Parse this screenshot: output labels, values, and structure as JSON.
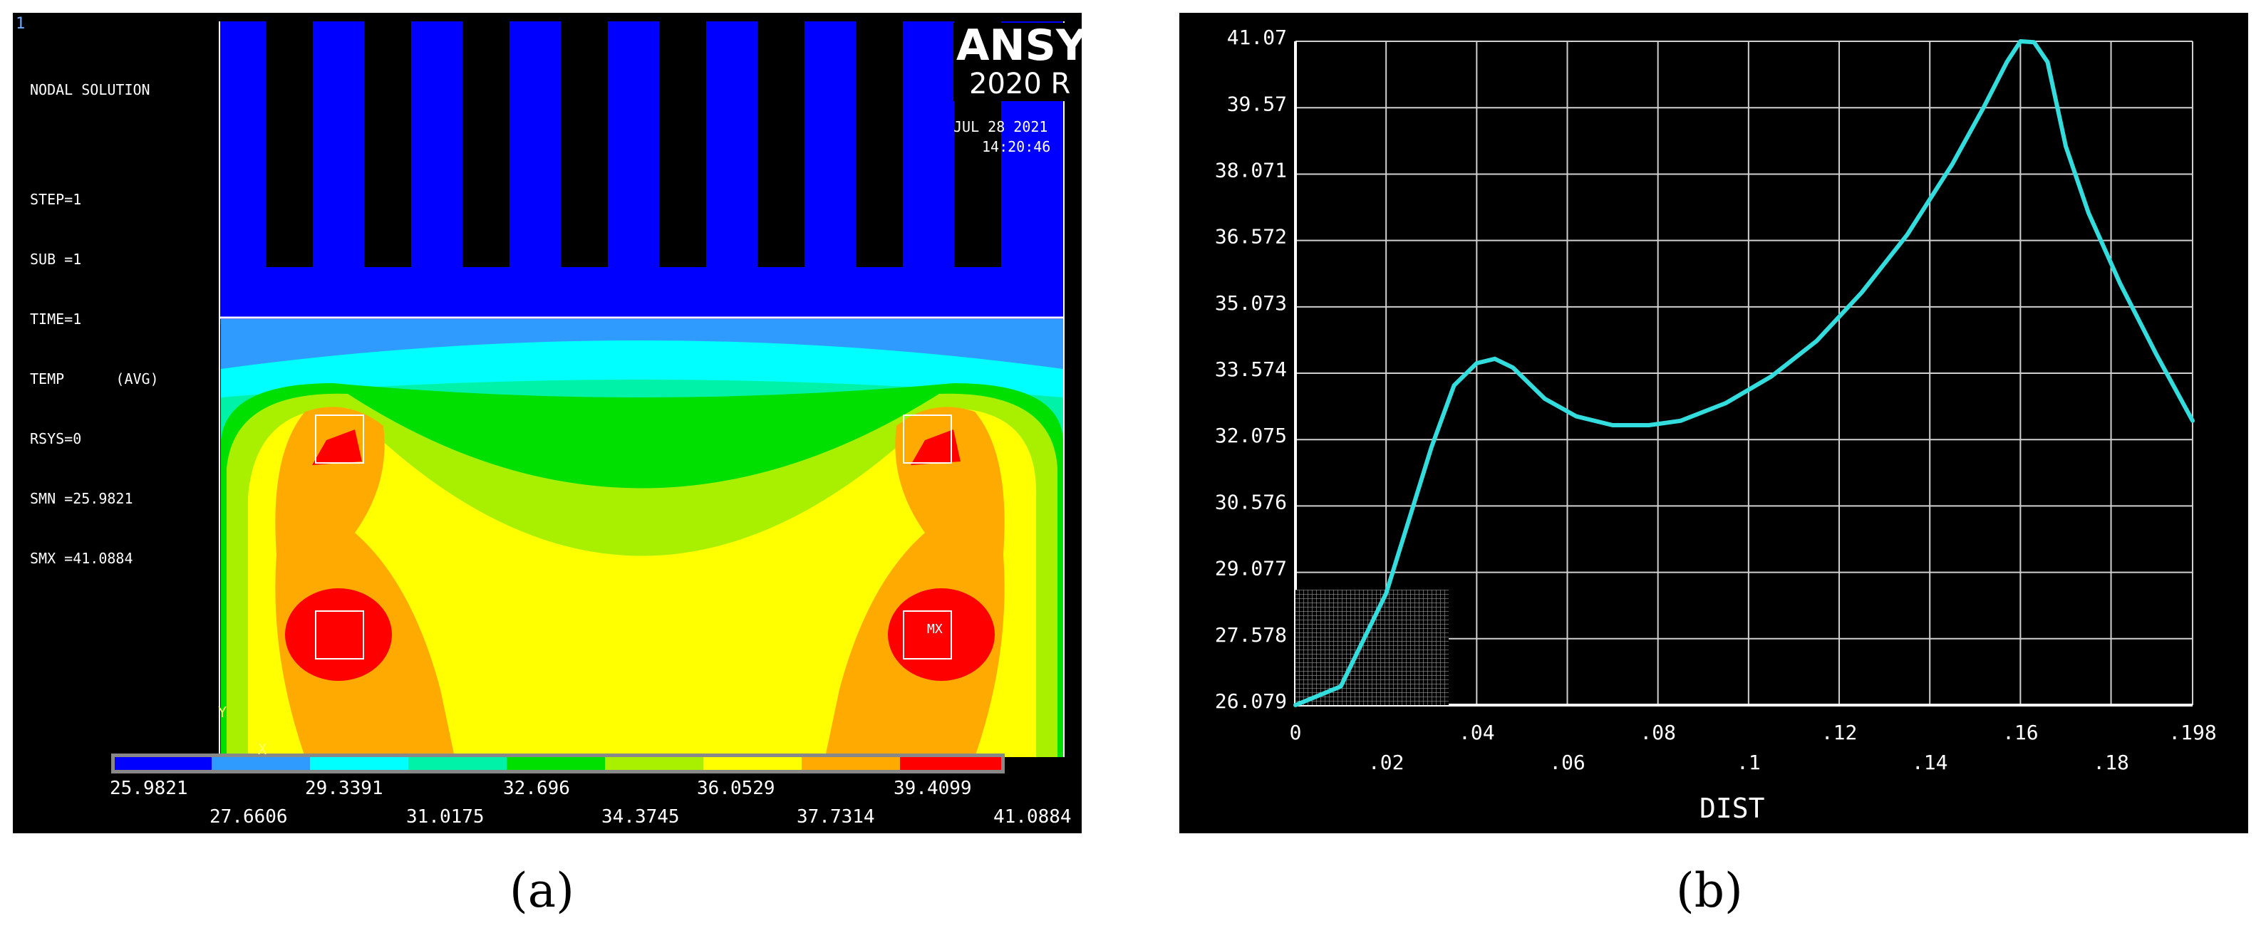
{
  "colors": {
    "blue": "#0000ff",
    "lightblue": "#2f9bff",
    "cyan": "#00ffff",
    "aqua": "#00f2a8",
    "green": "#00e000",
    "yellowgreen": "#a8f000",
    "yellow": "#ffff00",
    "orange": "#ffaa00",
    "red": "#ff0000",
    "curve": "#33dddd",
    "grid": "#d0d0d0"
  },
  "panel_a": {
    "corner_id": "1",
    "info_lines": [
      "NODAL SOLUTION",
      "",
      "STEP=1",
      "SUB =1",
      "TIME=1",
      "TEMP      (AVG)",
      "RSYS=0",
      "SMN =25.9821",
      "SMX =41.0884"
    ],
    "logo": "ANSYS",
    "version": "2020 R",
    "date": "JUL 28 2021",
    "time": "14:20:46",
    "max_marker": "MX",
    "axis_y": "Y",
    "axis_x": "X",
    "legend_upper": [
      "25.9821",
      "29.3391",
      "32.696",
      "36.0529",
      "39.4099"
    ],
    "legend_lower": [
      "27.6606",
      "31.0175",
      "34.3745",
      "37.7314",
      "41.0884"
    ]
  },
  "panel_b": {
    "xlabel": "DIST"
  },
  "captions": {
    "a": "(a)",
    "b": "(b)"
  },
  "chart_data": {
    "type": "line",
    "title": "",
    "xlabel": "DIST",
    "ylabel": "",
    "xlim": [
      0,
      0.198
    ],
    "ylim": [
      26.079,
      41.07
    ],
    "grid": true,
    "x_ticks": [
      "0",
      ".02",
      ".04",
      ".06",
      ".08",
      ".1",
      ".12",
      ".14",
      ".16",
      ".18",
      ".198"
    ],
    "x_tick_values": [
      0,
      0.02,
      0.04,
      0.06,
      0.08,
      0.1,
      0.12,
      0.14,
      0.16,
      0.18,
      0.198
    ],
    "y_ticks": [
      "26.079",
      "27.578",
      "29.077",
      "30.576",
      "32.075",
      "33.574",
      "35.073",
      "36.572",
      "38.071",
      "39.57",
      "41.07"
    ],
    "y_tick_values": [
      26.079,
      27.578,
      29.077,
      30.576,
      32.075,
      33.574,
      35.073,
      36.572,
      38.071,
      39.57,
      41.07
    ],
    "series": [
      {
        "x": [
          0.0,
          0.01,
          0.02,
          0.03,
          0.035,
          0.04,
          0.044,
          0.048,
          0.055,
          0.062,
          0.07,
          0.078,
          0.085,
          0.095,
          0.105,
          0.115,
          0.125,
          0.135,
          0.145,
          0.152,
          0.157,
          0.16,
          0.163,
          0.166,
          0.17,
          0.175,
          0.182,
          0.19,
          0.198
        ],
        "y": [
          26.079,
          26.5,
          28.6,
          31.9,
          33.3,
          33.8,
          33.9,
          33.7,
          33.0,
          32.6,
          32.4,
          32.4,
          32.5,
          32.9,
          33.5,
          34.3,
          35.4,
          36.7,
          38.3,
          39.6,
          40.6,
          41.07,
          41.05,
          40.6,
          38.7,
          37.2,
          35.6,
          34.0,
          32.5
        ]
      }
    ]
  }
}
